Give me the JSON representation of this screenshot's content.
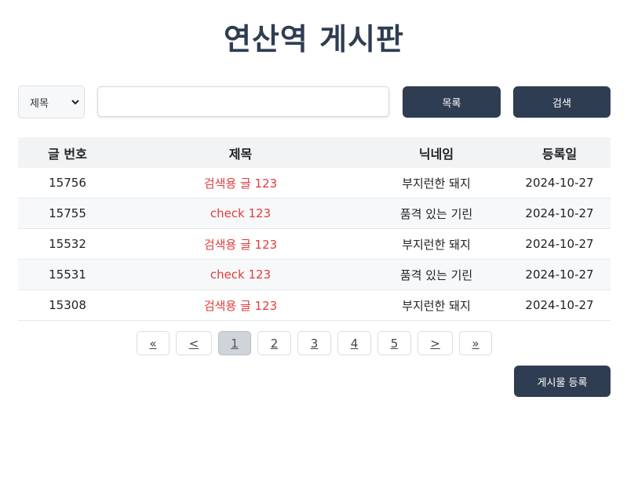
{
  "page": {
    "title": "연산역 게시판"
  },
  "search": {
    "field_selected": "제목",
    "field_options": [
      "제목"
    ],
    "query_value": "",
    "list_button": "목록",
    "search_button": "검색"
  },
  "table": {
    "headers": {
      "id": "글 번호",
      "title": "제목",
      "nickname": "닉네임",
      "date": "등록일"
    },
    "rows": [
      {
        "id": "15756",
        "title": "검색용 글 123",
        "nickname": "부지런한 돼지",
        "date": "2024-10-27"
      },
      {
        "id": "15755",
        "title": "check 123",
        "nickname": "품격 있는 기린",
        "date": "2024-10-27"
      },
      {
        "id": "15532",
        "title": "검색용 글 123",
        "nickname": "부지런한 돼지",
        "date": "2024-10-27"
      },
      {
        "id": "15531",
        "title": "check 123",
        "nickname": "품격 있는 기린",
        "date": "2024-10-27"
      },
      {
        "id": "15308",
        "title": "검색용 글 123",
        "nickname": "부지런한 돼지",
        "date": "2024-10-27"
      }
    ]
  },
  "pagination": {
    "first": "«",
    "prev": "<",
    "pages": [
      "1",
      "2",
      "3",
      "4",
      "5"
    ],
    "current_page": "1",
    "next": ">",
    "last": "»"
  },
  "actions": {
    "register_button": "게시물 등록"
  },
  "colors": {
    "primary": "#2f3d52",
    "post_title": "#e03c3c",
    "header_bg": "#f1f3f5"
  },
  "icons": {
    "select_chevron": "chevron-down-icon"
  }
}
